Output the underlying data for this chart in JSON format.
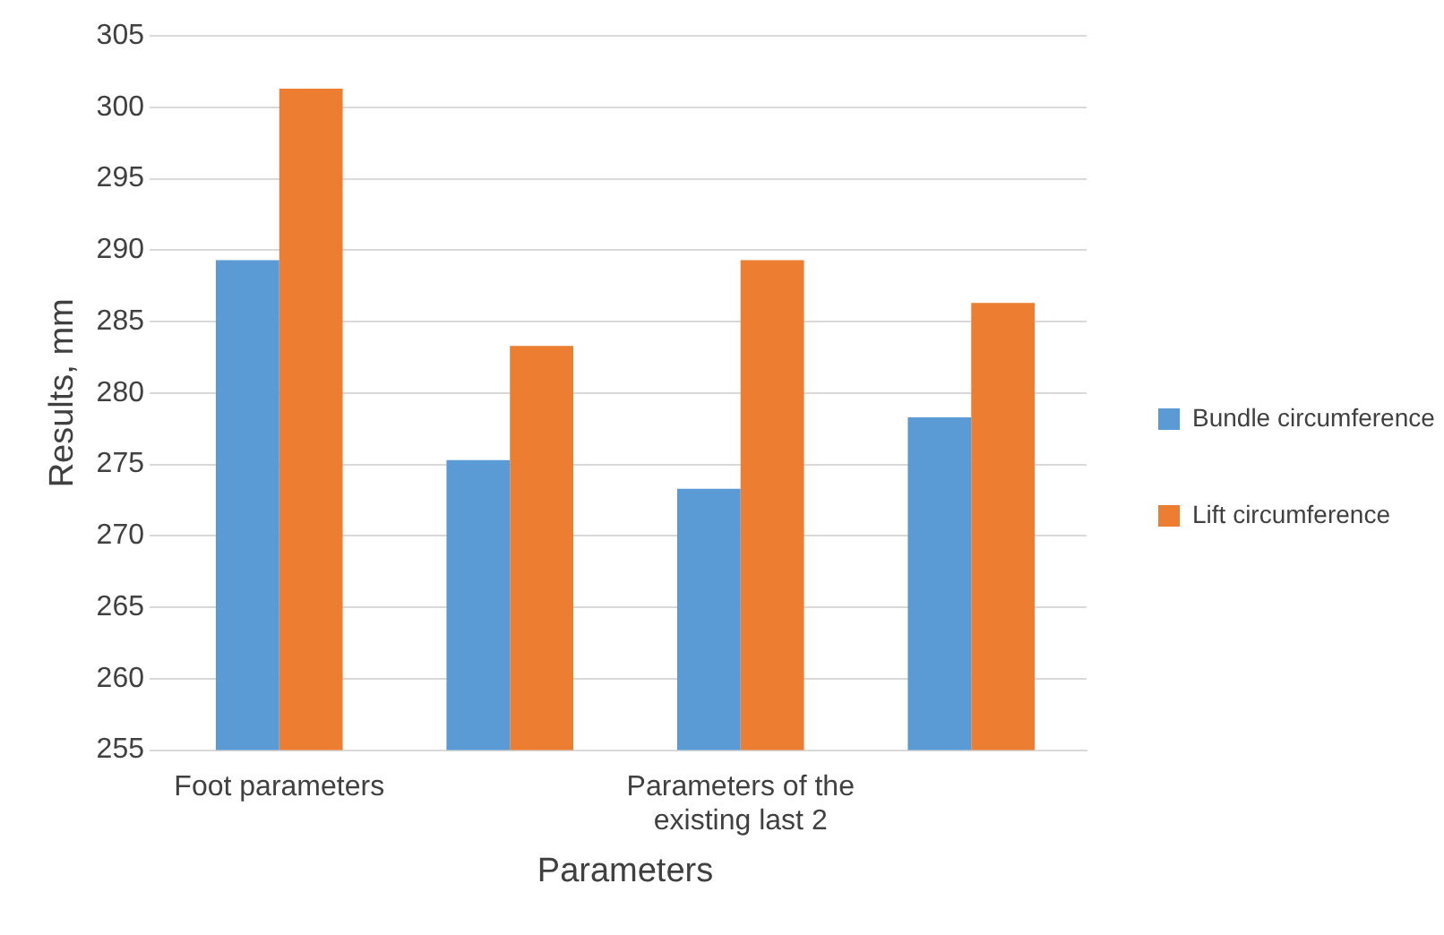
{
  "chart_data": {
    "type": "bar",
    "xlabel": "Parameters",
    "ylabel": "Results, mm",
    "categories": [
      "Foot parameters",
      null,
      "Parameters of the existing last 2",
      null
    ],
    "series": [
      {
        "name": "Bundle circumference",
        "color": "#5b9bd5",
        "values": [
          289.3,
          275.3,
          273.3,
          278.3
        ]
      },
      {
        "name": "Lift circumference",
        "color": "#ed7d31",
        "values": [
          301.3,
          283.3,
          289.3,
          286.3
        ]
      }
    ],
    "ylim": [
      255,
      305
    ],
    "yticks": [
      255,
      260,
      265,
      270,
      275,
      280,
      285,
      290,
      295,
      300,
      305
    ],
    "grid": "y",
    "legend": "right"
  }
}
